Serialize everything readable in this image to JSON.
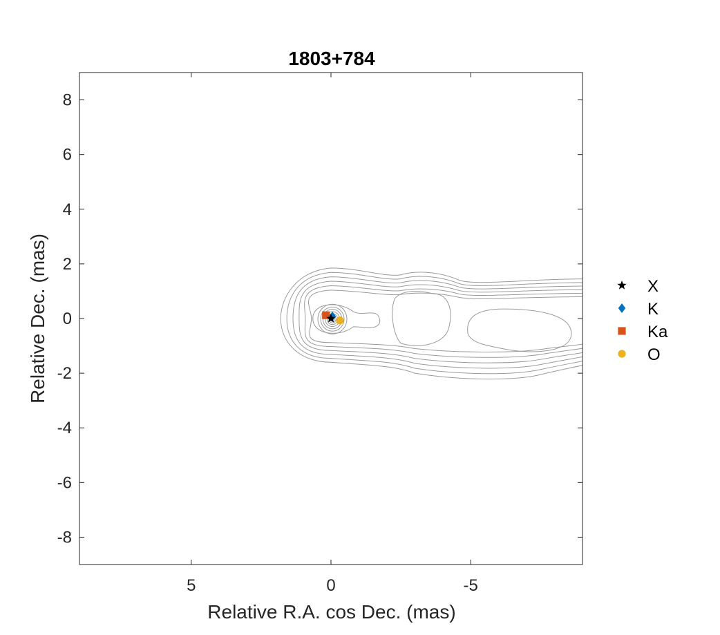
{
  "chart_data": {
    "type": "scatter",
    "title": "1803+784",
    "xlabel": "Relative R.A. cos Dec. (mas)",
    "ylabel": "Relative Dec. (mas)",
    "xlim": [
      9,
      -9
    ],
    "ylim": [
      -9,
      9
    ],
    "x_reversed": true,
    "xticks": [
      5,
      0,
      -5
    ],
    "xtick_labels": [
      "5",
      "0",
      "-5"
    ],
    "yticks": [
      8,
      6,
      4,
      2,
      0,
      -2,
      -4,
      -6,
      -8
    ],
    "ytick_labels": [
      "8",
      "6",
      "4",
      "2",
      "0",
      "-2",
      "-4",
      "-6",
      "-8"
    ],
    "grid": false,
    "legend_position": "outside-right",
    "background_contours": "gray intensity contours of the jet (core near origin, extending toward negative R.A.)",
    "series": [
      {
        "name": "X",
        "marker": "star",
        "color": "#000000",
        "points": [
          [
            0.0,
            0.0
          ]
        ]
      },
      {
        "name": "K",
        "marker": "diamond",
        "color": "#0072BD",
        "points": [
          [
            -0.05,
            0.08
          ]
        ]
      },
      {
        "name": "Ka",
        "marker": "square",
        "color": "#D95319",
        "points": [
          [
            0.18,
            0.12
          ]
        ]
      },
      {
        "name": "O",
        "marker": "circle",
        "color": "#EDB120",
        "points": [
          [
            -0.32,
            -0.07
          ]
        ]
      }
    ]
  }
}
